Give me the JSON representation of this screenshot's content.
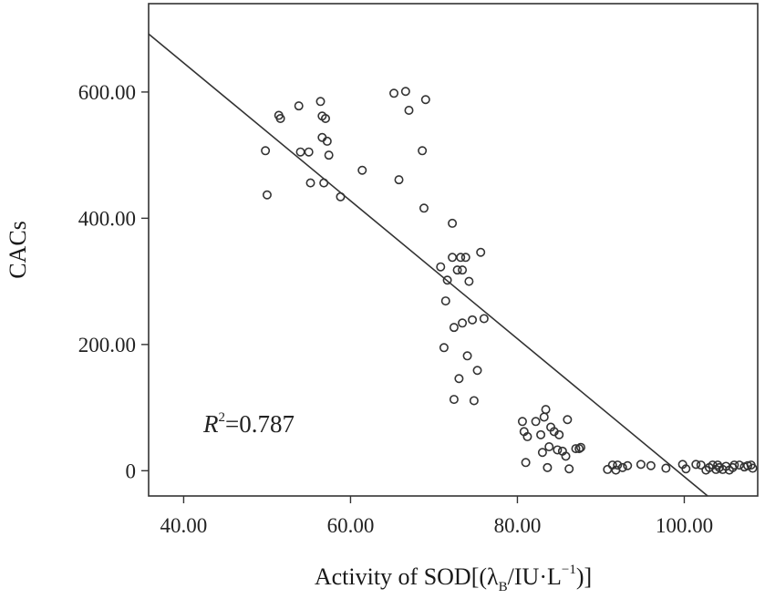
{
  "chart_data": {
    "type": "scatter",
    "xlabel": "Activity of SOD[(λ",
    "xlabel_sub": "B",
    "xlabel_unit": "/IU·L",
    "xlabel_sup": "−1",
    "xlabel_end": ")]",
    "ylabel": "CACs",
    "xlim": [
      35.8,
      108.8
    ],
    "ylim": [
      -40,
      740
    ],
    "xticks": [
      40,
      60,
      80,
      100
    ],
    "xtick_labels": [
      "40.00",
      "60.00",
      "80.00",
      "100.00"
    ],
    "yticks": [
      0,
      200,
      400,
      600
    ],
    "ytick_labels": [
      "0",
      "200.00",
      "400.00",
      "600.00"
    ],
    "annotation": {
      "prefix": "R",
      "sup": "2",
      "text": "=0.787"
    },
    "fit_line": {
      "x": [
        35.8,
        102.8
      ],
      "y": [
        692,
        -40
      ]
    },
    "points": {
      "x": [
        49.8,
        50.0,
        51.4,
        51.6,
        53.8,
        54.0,
        55.0,
        55.2,
        56.4,
        56.6,
        56.6,
        56.8,
        57.0,
        57.2,
        57.4,
        58.8,
        61.4,
        65.2,
        65.8,
        66.6,
        67.0,
        68.6,
        68.8,
        69.0,
        70.8,
        71.4,
        71.6,
        71.2,
        72.2,
        72.2,
        72.4,
        72.4,
        72.8,
        73.0,
        73.2,
        73.4,
        73.4,
        73.8,
        74.0,
        74.2,
        74.6,
        74.8,
        75.2,
        75.6,
        76.0,
        80.6,
        80.8,
        81.0,
        81.2,
        82.2,
        82.8,
        83.0,
        83.2,
        83.4,
        83.6,
        83.8,
        84.0,
        84.4,
        84.8,
        85.0,
        85.4,
        85.8,
        86.0,
        86.2,
        87.0,
        87.4,
        87.6,
        90.8,
        91.4,
        91.8,
        92.0,
        92.6,
        93.2,
        94.8,
        96.0,
        97.8,
        99.8,
        100.2,
        101.4,
        102.0,
        102.6,
        103.0,
        103.4,
        103.8,
        104.0,
        104.2,
        104.6,
        105.0,
        105.4,
        105.8,
        106.0,
        106.6,
        107.2,
        107.6,
        108.0,
        108.2
      ],
      "y": [
        507,
        437,
        563,
        558,
        578,
        505,
        505,
        456,
        585,
        528,
        562,
        456,
        558,
        522,
        500,
        434,
        476,
        598,
        461,
        601,
        571,
        507,
        416,
        588,
        323,
        269,
        302,
        195,
        392,
        338,
        227,
        113,
        318,
        146,
        338,
        234,
        318,
        338,
        182,
        300,
        239,
        111,
        159,
        346,
        241,
        78,
        62,
        13,
        54,
        78,
        57,
        29,
        85,
        97,
        5,
        38,
        69,
        62,
        33,
        57,
        31,
        23,
        81,
        3,
        35,
        35,
        37,
        2,
        9,
        1,
        9,
        5,
        8,
        10,
        8,
        4,
        10,
        3,
        10,
        9,
        1,
        5,
        9,
        2,
        9,
        5,
        2,
        7,
        1,
        5,
        9,
        9,
        6,
        8,
        9,
        4
      ]
    }
  }
}
